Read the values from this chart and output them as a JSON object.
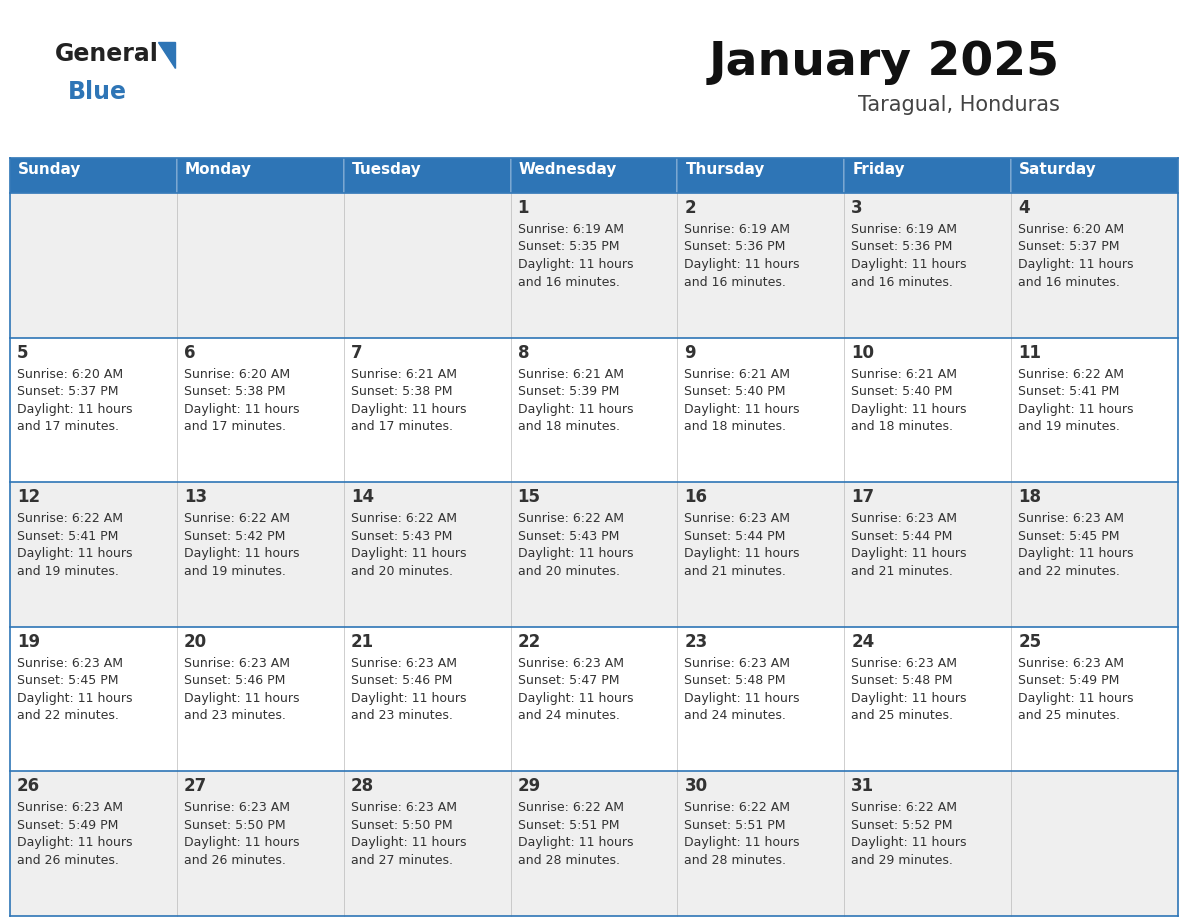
{
  "title": "January 2025",
  "subtitle": "Taragual, Honduras",
  "header_bg": "#2E75B6",
  "header_text_color": "#FFFFFF",
  "weekdays": [
    "Sunday",
    "Monday",
    "Tuesday",
    "Wednesday",
    "Thursday",
    "Friday",
    "Saturday"
  ],
  "row_bg_odd": "#EFEFEF",
  "row_bg_even": "#FFFFFF",
  "border_color": "#2E75B6",
  "day_number_color": "#333333",
  "info_text_color": "#333333",
  "logo_general_color": "#222222",
  "logo_blue_color": "#2E75B6",
  "calendar": [
    [
      null,
      null,
      null,
      {
        "day": 1,
        "sunrise": "6:19 AM",
        "sunset": "5:35 PM",
        "daylight": "11 hours and 16 minutes."
      },
      {
        "day": 2,
        "sunrise": "6:19 AM",
        "sunset": "5:36 PM",
        "daylight": "11 hours and 16 minutes."
      },
      {
        "day": 3,
        "sunrise": "6:19 AM",
        "sunset": "5:36 PM",
        "daylight": "11 hours and 16 minutes."
      },
      {
        "day": 4,
        "sunrise": "6:20 AM",
        "sunset": "5:37 PM",
        "daylight": "11 hours and 16 minutes."
      }
    ],
    [
      {
        "day": 5,
        "sunrise": "6:20 AM",
        "sunset": "5:37 PM",
        "daylight": "11 hours and 17 minutes."
      },
      {
        "day": 6,
        "sunrise": "6:20 AM",
        "sunset": "5:38 PM",
        "daylight": "11 hours and 17 minutes."
      },
      {
        "day": 7,
        "sunrise": "6:21 AM",
        "sunset": "5:38 PM",
        "daylight": "11 hours and 17 minutes."
      },
      {
        "day": 8,
        "sunrise": "6:21 AM",
        "sunset": "5:39 PM",
        "daylight": "11 hours and 18 minutes."
      },
      {
        "day": 9,
        "sunrise": "6:21 AM",
        "sunset": "5:40 PM",
        "daylight": "11 hours and 18 minutes."
      },
      {
        "day": 10,
        "sunrise": "6:21 AM",
        "sunset": "5:40 PM",
        "daylight": "11 hours and 18 minutes."
      },
      {
        "day": 11,
        "sunrise": "6:22 AM",
        "sunset": "5:41 PM",
        "daylight": "11 hours and 19 minutes."
      }
    ],
    [
      {
        "day": 12,
        "sunrise": "6:22 AM",
        "sunset": "5:41 PM",
        "daylight": "11 hours and 19 minutes."
      },
      {
        "day": 13,
        "sunrise": "6:22 AM",
        "sunset": "5:42 PM",
        "daylight": "11 hours and 19 minutes."
      },
      {
        "day": 14,
        "sunrise": "6:22 AM",
        "sunset": "5:43 PM",
        "daylight": "11 hours and 20 minutes."
      },
      {
        "day": 15,
        "sunrise": "6:22 AM",
        "sunset": "5:43 PM",
        "daylight": "11 hours and 20 minutes."
      },
      {
        "day": 16,
        "sunrise": "6:23 AM",
        "sunset": "5:44 PM",
        "daylight": "11 hours and 21 minutes."
      },
      {
        "day": 17,
        "sunrise": "6:23 AM",
        "sunset": "5:44 PM",
        "daylight": "11 hours and 21 minutes."
      },
      {
        "day": 18,
        "sunrise": "6:23 AM",
        "sunset": "5:45 PM",
        "daylight": "11 hours and 22 minutes."
      }
    ],
    [
      {
        "day": 19,
        "sunrise": "6:23 AM",
        "sunset": "5:45 PM",
        "daylight": "11 hours and 22 minutes."
      },
      {
        "day": 20,
        "sunrise": "6:23 AM",
        "sunset": "5:46 PM",
        "daylight": "11 hours and 23 minutes."
      },
      {
        "day": 21,
        "sunrise": "6:23 AM",
        "sunset": "5:46 PM",
        "daylight": "11 hours and 23 minutes."
      },
      {
        "day": 22,
        "sunrise": "6:23 AM",
        "sunset": "5:47 PM",
        "daylight": "11 hours and 24 minutes."
      },
      {
        "day": 23,
        "sunrise": "6:23 AM",
        "sunset": "5:48 PM",
        "daylight": "11 hours and 24 minutes."
      },
      {
        "day": 24,
        "sunrise": "6:23 AM",
        "sunset": "5:48 PM",
        "daylight": "11 hours and 25 minutes."
      },
      {
        "day": 25,
        "sunrise": "6:23 AM",
        "sunset": "5:49 PM",
        "daylight": "11 hours and 25 minutes."
      }
    ],
    [
      {
        "day": 26,
        "sunrise": "6:23 AM",
        "sunset": "5:49 PM",
        "daylight": "11 hours and 26 minutes."
      },
      {
        "day": 27,
        "sunrise": "6:23 AM",
        "sunset": "5:50 PM",
        "daylight": "11 hours and 26 minutes."
      },
      {
        "day": 28,
        "sunrise": "6:23 AM",
        "sunset": "5:50 PM",
        "daylight": "11 hours and 27 minutes."
      },
      {
        "day": 29,
        "sunrise": "6:22 AM",
        "sunset": "5:51 PM",
        "daylight": "11 hours and 28 minutes."
      },
      {
        "day": 30,
        "sunrise": "6:22 AM",
        "sunset": "5:51 PM",
        "daylight": "11 hours and 28 minutes."
      },
      {
        "day": 31,
        "sunrise": "6:22 AM",
        "sunset": "5:52 PM",
        "daylight": "11 hours and 29 minutes."
      },
      null
    ]
  ]
}
